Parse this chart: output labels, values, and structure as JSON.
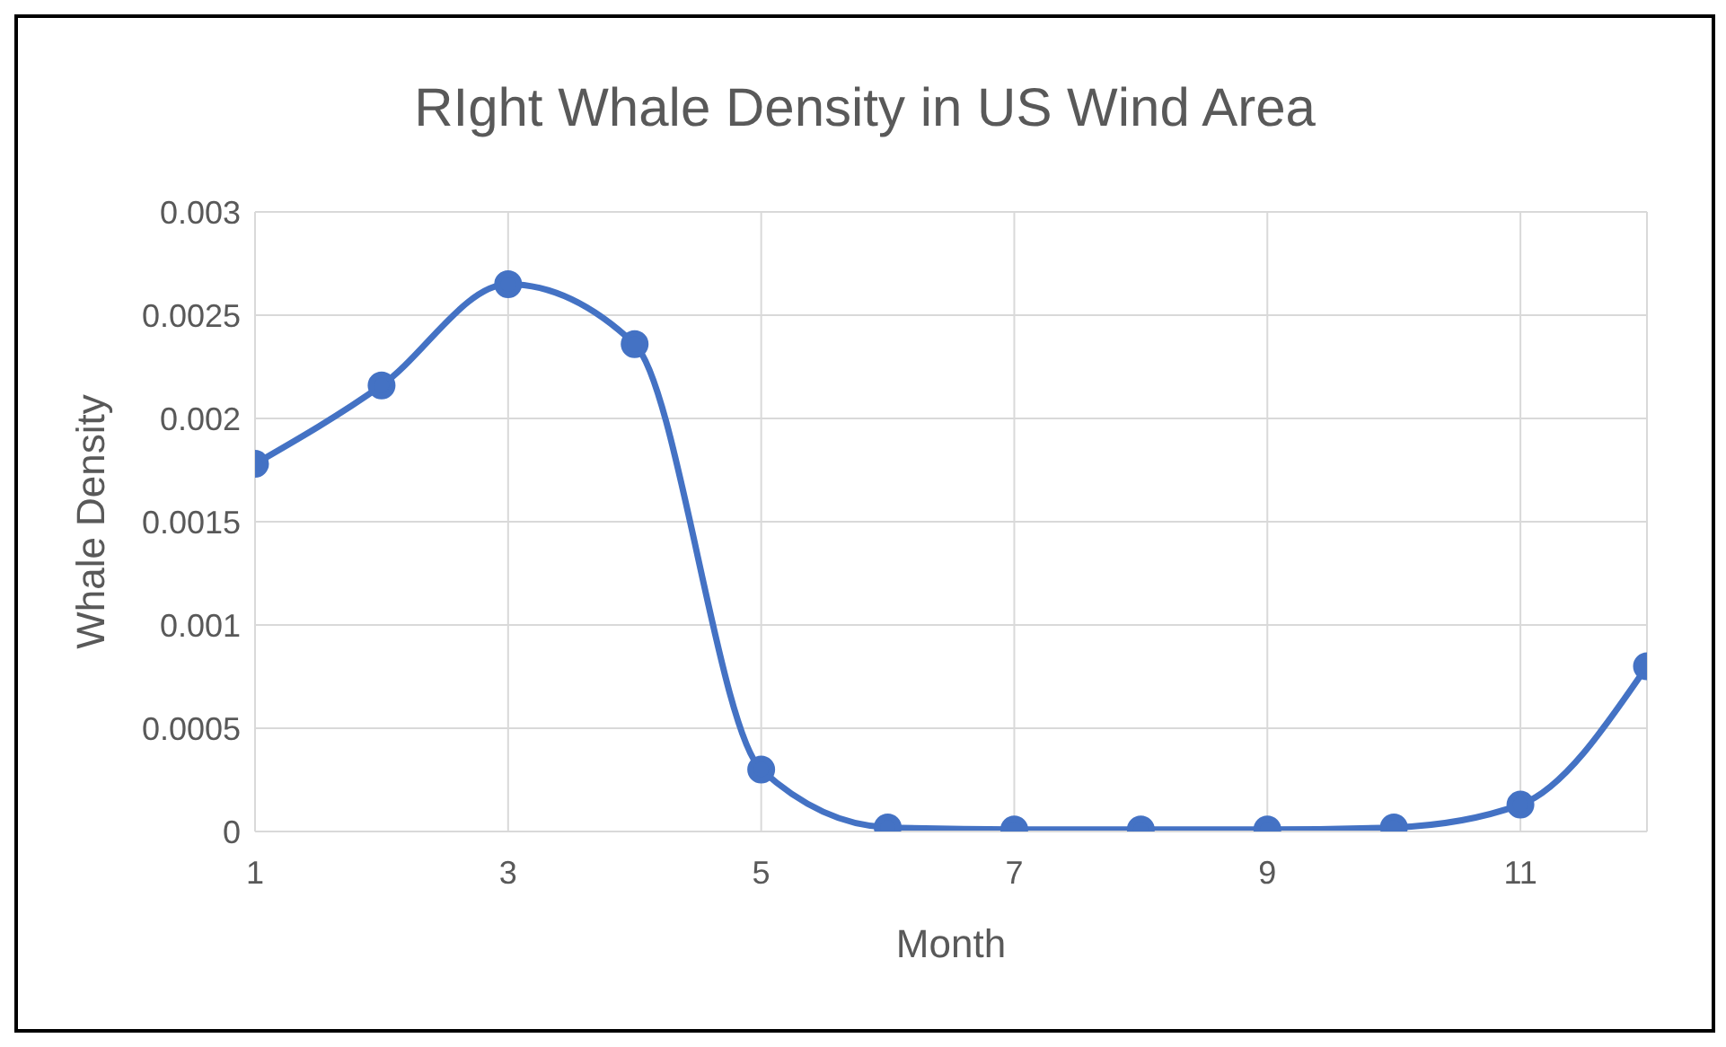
{
  "chart_data": {
    "type": "line",
    "title": "RIght Whale Density in US Wind Area",
    "xlabel": "Month",
    "ylabel": "Whale Density",
    "x": [
      1,
      2,
      3,
      4,
      5,
      6,
      7,
      8,
      9,
      10,
      11,
      12
    ],
    "series": [
      {
        "color": "#4472c4",
        "values": [
          0.00178,
          0.00216,
          0.00265,
          0.00236,
          0.0003,
          2e-05,
          1e-05,
          1e-05,
          1e-05,
          2e-05,
          0.00013,
          0.0008
        ]
      }
    ],
    "xlim": [
      1,
      12
    ],
    "xticks": [
      1,
      3,
      5,
      7,
      9,
      11
    ],
    "ylim": [
      0,
      0.003
    ],
    "yticks": [
      0,
      0.0005,
      0.001,
      0.0015,
      0.002,
      0.0025,
      0.003
    ],
    "grid": true,
    "marker": "circle",
    "line_style": "solid"
  }
}
